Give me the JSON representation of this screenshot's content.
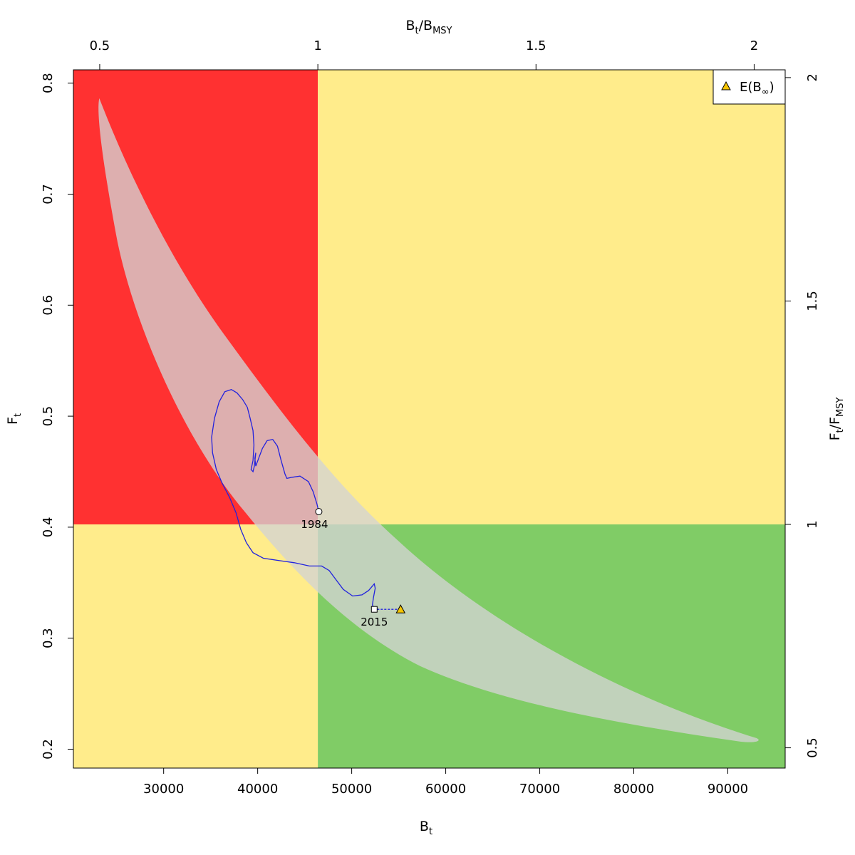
{
  "chart_data": {
    "type": "kobe-phase-plot",
    "bottom_axis": {
      "label_main": "B",
      "label_sub": "t",
      "xlim": [
        20400,
        96100
      ],
      "ticks": [
        30000,
        40000,
        50000,
        60000,
        70000,
        80000,
        90000
      ],
      "tick_labels": [
        "30000",
        "40000",
        "50000",
        "60000",
        "70000",
        "80000",
        "90000"
      ]
    },
    "left_axis": {
      "label_main": "F",
      "label_sub": "t",
      "ylim": [
        0.183,
        0.812
      ],
      "ticks": [
        0.2,
        0.3,
        0.4,
        0.5,
        0.6,
        0.7,
        0.8
      ],
      "tick_labels": [
        "0.2",
        "0.3",
        "0.4",
        "0.5",
        "0.6",
        "0.7",
        "0.8"
      ]
    },
    "top_axis": {
      "label_main": "B",
      "label_sub": "t",
      "label_main2": "B",
      "label_sub2": "MSY",
      "ticks": [
        0.5,
        1,
        1.5,
        2
      ],
      "tick_labels": [
        "0.5",
        "1",
        "1.5",
        "2"
      ]
    },
    "right_axis": {
      "label_main": "F",
      "label_sub": "t",
      "label_main2": "F",
      "label_sub2": "MSY",
      "ticks": [
        0.5,
        1,
        1.5,
        2
      ],
      "tick_labels": [
        "0.5",
        "1",
        "1.5",
        "2"
      ]
    },
    "reference_points": {
      "Bmsy": 46400,
      "Fmsy": 0.4025
    },
    "quadrant_colors": {
      "overfished_overfishing": "#ff3131",
      "caution": "#ffec8b",
      "healthy": "#80cc66"
    },
    "confidence_region_color": "#d3d3d3",
    "trajectory": {
      "color": "#2222dd",
      "points": [
        [
          46500,
          0.414
        ],
        [
          46300,
          0.421
        ],
        [
          45900,
          0.432
        ],
        [
          45400,
          0.441
        ],
        [
          44500,
          0.446
        ],
        [
          43700,
          0.445
        ],
        [
          43100,
          0.444
        ],
        [
          42900,
          0.448
        ],
        [
          42500,
          0.46
        ],
        [
          42100,
          0.473
        ],
        [
          41600,
          0.479
        ],
        [
          41000,
          0.478
        ],
        [
          40500,
          0.471
        ],
        [
          40100,
          0.462
        ],
        [
          39800,
          0.455
        ],
        [
          39700,
          0.462
        ],
        [
          39800,
          0.467
        ],
        [
          39650,
          0.455
        ],
        [
          39500,
          0.45
        ],
        [
          39300,
          0.452
        ],
        [
          39500,
          0.46
        ],
        [
          39600,
          0.474
        ],
        [
          39500,
          0.487
        ],
        [
          39200,
          0.498
        ],
        [
          38900,
          0.508
        ],
        [
          38400,
          0.515
        ],
        [
          37800,
          0.521
        ],
        [
          37200,
          0.524
        ],
        [
          36500,
          0.522
        ],
        [
          35900,
          0.513
        ],
        [
          35400,
          0.498
        ],
        [
          35100,
          0.481
        ],
        [
          35200,
          0.467
        ],
        [
          35600,
          0.452
        ],
        [
          36200,
          0.44
        ],
        [
          37000,
          0.427
        ],
        [
          37700,
          0.413
        ],
        [
          38200,
          0.398
        ],
        [
          38800,
          0.386
        ],
        [
          39500,
          0.377
        ],
        [
          40600,
          0.372
        ],
        [
          42200,
          0.37
        ],
        [
          43900,
          0.368
        ],
        [
          45500,
          0.365
        ],
        [
          46800,
          0.365
        ],
        [
          47600,
          0.361
        ],
        [
          48300,
          0.353
        ],
        [
          49100,
          0.344
        ],
        [
          50100,
          0.338
        ],
        [
          51100,
          0.339
        ],
        [
          51800,
          0.343
        ],
        [
          52400,
          0.349
        ],
        [
          52500,
          0.345
        ],
        [
          52300,
          0.336
        ],
        [
          52200,
          0.33
        ],
        [
          52400,
          0.326
        ]
      ]
    },
    "start_point": {
      "x": 46500,
      "y": 0.414,
      "label": "1984"
    },
    "end_point": {
      "x": 52400,
      "y": 0.326,
      "label": "2015"
    },
    "expected_point": {
      "x": 55200,
      "y": 0.326,
      "color": "#f5c400"
    },
    "legend": {
      "position": "top-right",
      "label_main": "E(B",
      "label_sub": "∞",
      "label_close": ")"
    }
  }
}
